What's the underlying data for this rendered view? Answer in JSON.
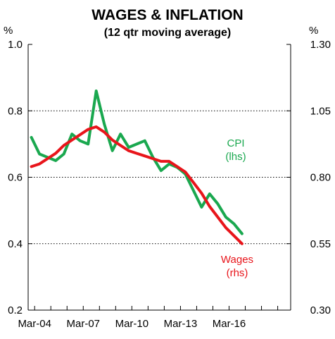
{
  "chart_data": {
    "type": "line",
    "title": "WAGES & INFLATION",
    "subtitle": "(12 qtr moving average)",
    "left_unit": "%",
    "right_unit": "%",
    "x_ticks": [
      "Mar-04",
      "Mar-07",
      "Mar-10",
      "Mar-13",
      "Mar-16"
    ],
    "x_range": [
      2003.8,
      2020.0
    ],
    "y_left": {
      "range": [
        0.2,
        1.0
      ],
      "ticks": [
        "0.2",
        "0.4",
        "0.6",
        "0.8",
        "1.0"
      ],
      "tick_values": [
        0.2,
        0.4,
        0.6,
        0.8,
        1.0
      ]
    },
    "y_right": {
      "range": [
        0.3,
        1.3
      ],
      "ticks": [
        "0.30",
        "0.55",
        "0.80",
        "1.05",
        "1.30"
      ],
      "tick_values": [
        0.3,
        0.55,
        0.8,
        1.05,
        1.3
      ]
    },
    "gridlines": [
      0.4,
      0.6,
      0.8
    ],
    "series": [
      {
        "name": "CPI",
        "label_lines": [
          "CPI",
          "(lhs)"
        ],
        "axis": "left",
        "color": "#1aa84f",
        "x": [
          2004.0,
          2004.5,
          2005.0,
          2005.5,
          2006.0,
          2006.5,
          2007.0,
          2007.5,
          2008.0,
          2008.5,
          2009.0,
          2009.5,
          2010.0,
          2010.5,
          2011.0,
          2011.5,
          2012.0,
          2012.5,
          2013.0,
          2013.5,
          2014.0,
          2014.5,
          2015.0,
          2015.5,
          2016.0,
          2016.5,
          2017.0
        ],
        "values": [
          0.72,
          0.67,
          0.66,
          0.65,
          0.67,
          0.73,
          0.71,
          0.7,
          0.86,
          0.76,
          0.68,
          0.73,
          0.69,
          0.7,
          0.71,
          0.66,
          0.62,
          0.64,
          0.63,
          0.61,
          0.56,
          0.51,
          0.55,
          0.52,
          0.48,
          0.46,
          0.43
        ]
      },
      {
        "name": "Wages",
        "label_lines": [
          "Wages",
          "(rhs)"
        ],
        "axis": "right",
        "color": "#e8151b",
        "x": [
          2004.0,
          2004.5,
          2005.0,
          2005.5,
          2006.0,
          2006.5,
          2007.0,
          2007.5,
          2008.0,
          2008.5,
          2009.0,
          2009.5,
          2010.0,
          2010.5,
          2011.0,
          2011.5,
          2012.0,
          2012.5,
          2013.0,
          2013.5,
          2014.0,
          2014.5,
          2015.0,
          2015.5,
          2016.0,
          2016.5,
          2017.0
        ],
        "values": [
          0.84,
          0.85,
          0.87,
          0.89,
          0.92,
          0.94,
          0.96,
          0.98,
          0.99,
          0.97,
          0.94,
          0.92,
          0.9,
          0.89,
          0.88,
          0.87,
          0.86,
          0.86,
          0.84,
          0.82,
          0.78,
          0.74,
          0.69,
          0.65,
          0.61,
          0.58,
          0.55
        ]
      }
    ]
  }
}
